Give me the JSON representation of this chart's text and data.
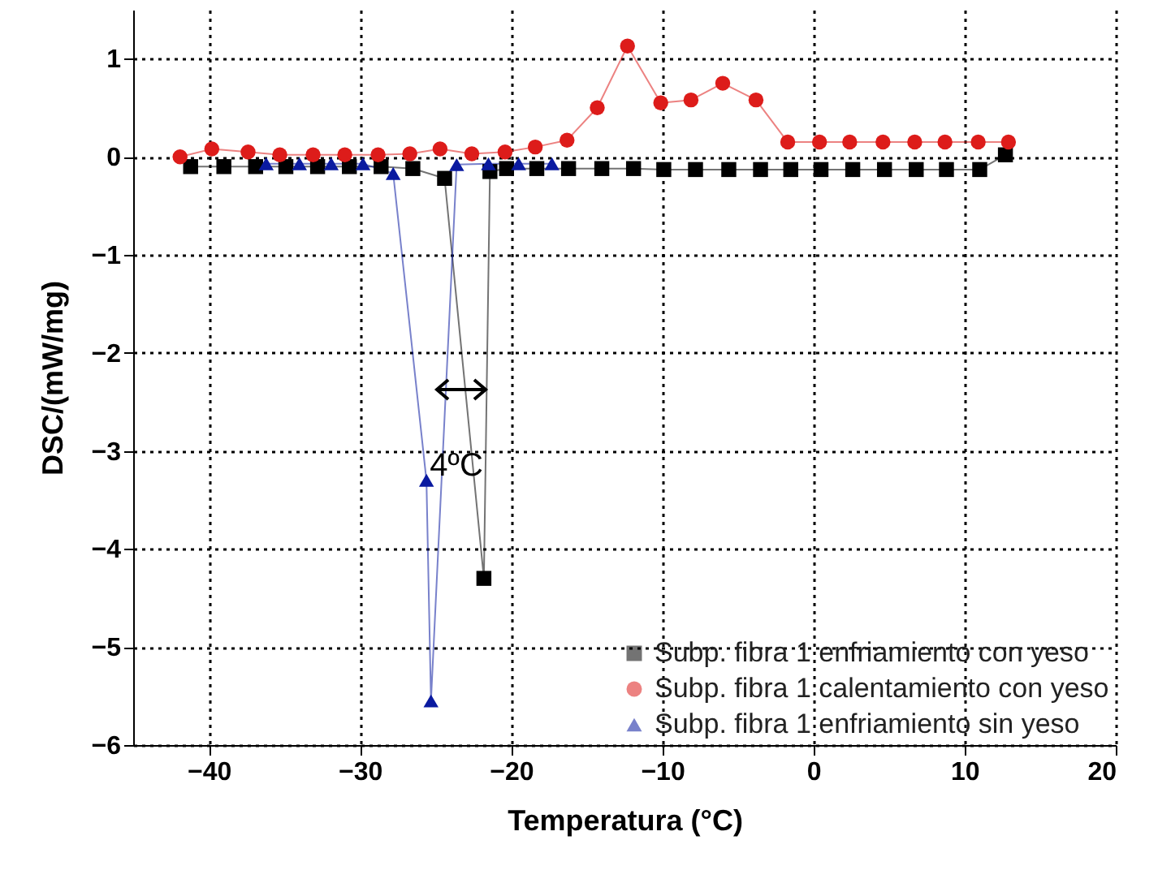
{
  "chart_data": {
    "type": "line",
    "xlabel": "Temperatura (°C)",
    "ylabel": "DSC/(mW/mg)",
    "xlim": [
      -45,
      20
    ],
    "xticks": [
      -40,
      -30,
      -20,
      -10,
      0,
      10,
      20
    ],
    "ylim": [
      -6,
      1.5
    ],
    "yticks": [
      -6,
      -5,
      -4,
      -3,
      -2,
      -1,
      0,
      1
    ],
    "grid": true,
    "legend": "bottom right",
    "line_style": "solid",
    "series": [
      {
        "name": "Subp. fibra 1 enfriamiento con yeso",
        "color": "#000000",
        "marker": "square",
        "x": [
          -41.2,
          -39.0,
          -36.9,
          -34.9,
          -32.8,
          -30.7,
          -28.6,
          -26.5,
          -24.4,
          -21.8,
          -21.4,
          -20.3,
          -18.3,
          -16.2,
          -14.0,
          -11.9,
          -9.9,
          -7.8,
          -5.6,
          -3.5,
          -1.5,
          0.5,
          2.6,
          4.7,
          6.8,
          8.8,
          11.0,
          12.7
        ],
        "values": [
          -0.1,
          -0.1,
          -0.1,
          -0.1,
          -0.1,
          -0.1,
          -0.1,
          -0.12,
          -0.22,
          -4.3,
          -0.15,
          -0.12,
          -0.12,
          -0.12,
          -0.12,
          -0.12,
          -0.13,
          -0.13,
          -0.13,
          -0.13,
          -0.13,
          -0.13,
          -0.13,
          -0.13,
          -0.13,
          -0.13,
          -0.13,
          0.02
        ]
      },
      {
        "name": "Subp. fibra 1 calentamiento con yeso",
        "color": "#dd1c1a",
        "marker": "circle",
        "x": [
          -41.9,
          -39.8,
          -37.4,
          -35.3,
          -33.1,
          -31.0,
          -28.8,
          -26.7,
          -24.7,
          -22.6,
          -20.4,
          -18.4,
          -16.3,
          -14.3,
          -12.3,
          -10.1,
          -8.1,
          -6.0,
          -3.8,
          -1.7,
          0.4,
          2.4,
          4.6,
          6.7,
          8.7,
          10.9,
          12.9
        ],
        "values": [
          0,
          0.08,
          0.05,
          0.02,
          0.02,
          0.02,
          0.02,
          0.03,
          0.08,
          0.03,
          0.05,
          0.1,
          0.17,
          0.5,
          1.13,
          0.55,
          0.58,
          0.75,
          0.58,
          0.15,
          0.15,
          0.15,
          0.15,
          0.15,
          0.15,
          0.15,
          0.15
        ]
      },
      {
        "name": "Subp. fibra 1 enfriamiento sin yeso",
        "color": "#0a1aa0",
        "marker": "triangle",
        "x": [
          -36.2,
          -34.0,
          -31.9,
          -29.8,
          -27.8,
          -25.6,
          -25.3,
          -23.6,
          -21.5,
          -19.5,
          -17.3
        ],
        "values": [
          -0.07,
          -0.07,
          -0.07,
          -0.07,
          -0.17,
          -3.3,
          -5.55,
          -0.08,
          -0.07,
          -0.07,
          -0.07
        ]
      }
    ],
    "annotations": [
      "4ºC"
    ]
  }
}
